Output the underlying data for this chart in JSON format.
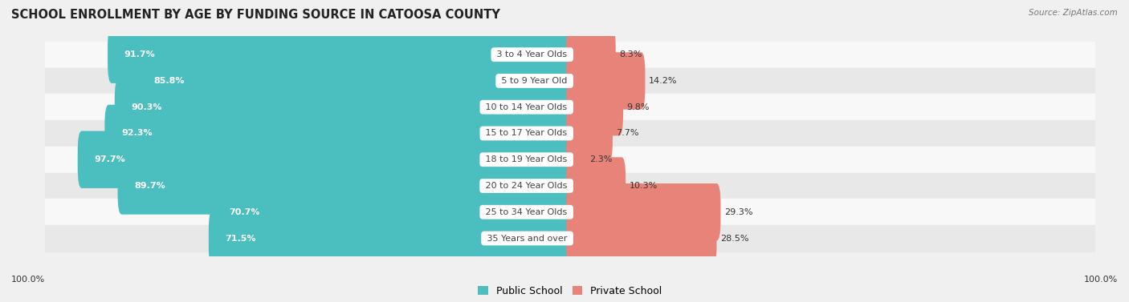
{
  "title": "SCHOOL ENROLLMENT BY AGE BY FUNDING SOURCE IN CATOOSA COUNTY",
  "source": "Source: ZipAtlas.com",
  "categories": [
    "3 to 4 Year Olds",
    "5 to 9 Year Old",
    "10 to 14 Year Olds",
    "15 to 17 Year Olds",
    "18 to 19 Year Olds",
    "20 to 24 Year Olds",
    "25 to 34 Year Olds",
    "35 Years and over"
  ],
  "public_values": [
    91.7,
    85.8,
    90.3,
    92.3,
    97.7,
    89.7,
    70.7,
    71.5
  ],
  "private_values": [
    8.3,
    14.2,
    9.8,
    7.7,
    2.3,
    10.3,
    29.3,
    28.5
  ],
  "public_color": "#4bbfbf",
  "private_color": "#e8837a",
  "label_color_public": "#ffffff",
  "label_color_category": "#444444",
  "label_color_private": "#333333",
  "bg_color": "#f0f0f0",
  "row_bg_light": "#f8f8f8",
  "row_bg_dark": "#e8e8e8",
  "axis_label_left": "100.0%",
  "axis_label_right": "100.0%",
  "bar_height": 0.58,
  "title_fontsize": 10.5,
  "label_fontsize": 8.0,
  "cat_fontsize": 8.0,
  "legend_fontsize": 9
}
